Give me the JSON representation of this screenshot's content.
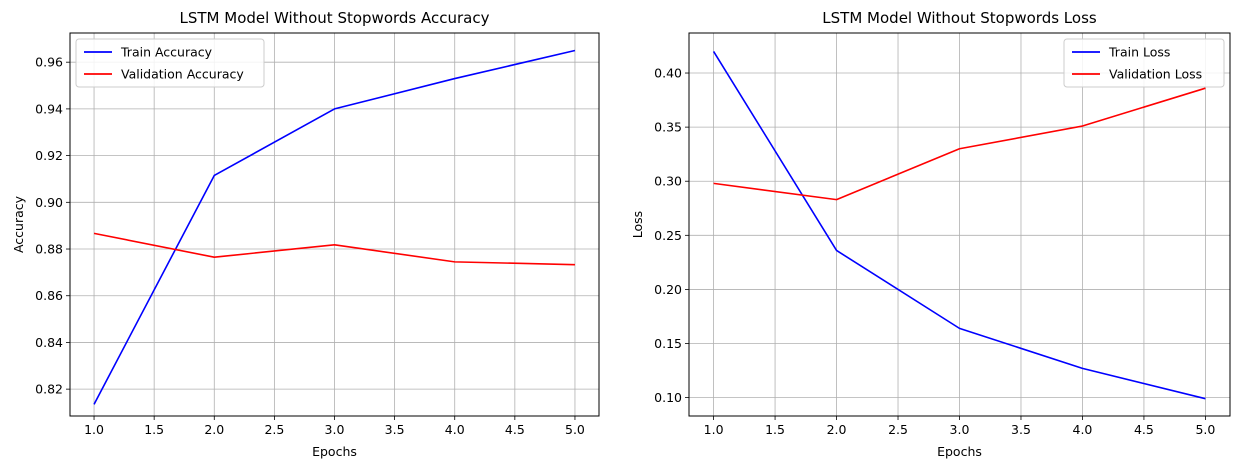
{
  "chart_data": [
    {
      "type": "line",
      "title": "LSTM Model Without Stopwords Accuracy",
      "xlabel": "Epochs",
      "ylabel": "Accuracy",
      "xlim": [
        0.8,
        5.2
      ],
      "ylim": [
        0.8085,
        0.9725
      ],
      "xticks": [
        1.0,
        1.5,
        2.0,
        2.5,
        3.0,
        3.5,
        4.0,
        4.5,
        5.0
      ],
      "xtick_labels": [
        "1.0",
        "1.5",
        "2.0",
        "2.5",
        "3.0",
        "3.5",
        "4.0",
        "4.5",
        "5.0"
      ],
      "yticks": [
        0.82,
        0.84,
        0.86,
        0.88,
        0.9,
        0.92,
        0.94,
        0.96
      ],
      "ytick_labels": [
        "0.82",
        "0.84",
        "0.86",
        "0.88",
        "0.90",
        "0.92",
        "0.94",
        "0.96"
      ],
      "grid": true,
      "legend_position": "top-left",
      "x": [
        1,
        2,
        3,
        4,
        5
      ],
      "series": [
        {
          "name": "Train Accuracy",
          "color": "#0000ff",
          "values": [
            0.8135,
            0.9115,
            0.94,
            0.953,
            0.965
          ]
        },
        {
          "name": "Validation Accuracy",
          "color": "#ff0000",
          "values": [
            0.8867,
            0.8765,
            0.8818,
            0.8745,
            0.8733
          ]
        }
      ]
    },
    {
      "type": "line",
      "title": "LSTM Model Without Stopwords Loss",
      "xlabel": "Epochs",
      "ylabel": "Loss",
      "xlim": [
        0.8,
        5.2
      ],
      "ylim": [
        0.083,
        0.437
      ],
      "xticks": [
        1.0,
        1.5,
        2.0,
        2.5,
        3.0,
        3.5,
        4.0,
        4.5,
        5.0
      ],
      "xtick_labels": [
        "1.0",
        "1.5",
        "2.0",
        "2.5",
        "3.0",
        "3.5",
        "4.0",
        "4.5",
        "5.0"
      ],
      "yticks": [
        0.1,
        0.15,
        0.2,
        0.25,
        0.3,
        0.35,
        0.4
      ],
      "ytick_labels": [
        "0.10",
        "0.15",
        "0.20",
        "0.25",
        "0.30",
        "0.35",
        "0.40"
      ],
      "grid": true,
      "legend_position": "top-right",
      "x": [
        1,
        2,
        3,
        4,
        5
      ],
      "series": [
        {
          "name": "Train Loss",
          "color": "#0000ff",
          "values": [
            0.42,
            0.236,
            0.164,
            0.127,
            0.099
          ]
        },
        {
          "name": "Validation Loss",
          "color": "#ff0000",
          "values": [
            0.298,
            0.283,
            0.33,
            0.351,
            0.386
          ]
        }
      ]
    }
  ]
}
